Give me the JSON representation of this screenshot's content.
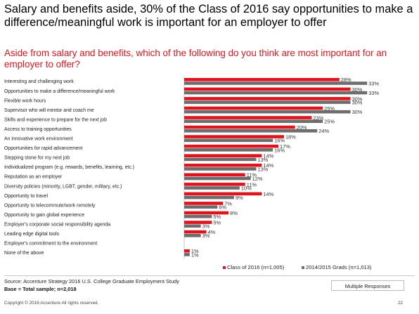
{
  "headline": "Salary and benefits aside, 30% of the Class of 2016 say opportunities to make a difference/meaningful work is important for an employer to offer",
  "question": "Aside from salary and benefits, which of the following do you think are most important for an employer to offer?",
  "colors": {
    "class2016": "#e0141e",
    "grads1415": "#6d6d6d",
    "question": "#e0141e"
  },
  "chart_data": {
    "type": "bar",
    "orientation": "horizontal",
    "unit": "%",
    "xlim": [
      0,
      35
    ],
    "grid": false,
    "legend_position": "bottom-right",
    "categories": [
      "Interesting and challenging work",
      "Opportunities to make a difference/meaningful work",
      "Flexible work hours",
      "Supervisor who will mentor and coach me",
      "Skills and experience to prepare for the next job",
      "Access to training opportunities",
      "An innovative work environment",
      "Opportunities for rapid advancement",
      "Stepping stone for my next job",
      "Individualized program (e.g. rewards, benefits, learning, etc.)",
      "Reputation as an employer",
      "Diversity policies (minority, LGBT, gender, military, etc.)",
      "Opportunity to travel",
      "Opportunity to telecommute/work remotely",
      "Opportunity to gain global experience",
      "Employer's corporate social responsibility agenda",
      "Leading edge digital tools",
      "Employer's commitment to the environment",
      "None of the above"
    ],
    "series": [
      {
        "name": "Class of 2016 (n=1,005)",
        "color": "#e0141e",
        "values": [
          28,
          30,
          30,
          25,
          23,
          20,
          18,
          17,
          14,
          14,
          11,
          11,
          14,
          7,
          8,
          5,
          4,
          null,
          1
        ]
      },
      {
        "name": "2014/2015 Grads (n=1,013)",
        "color": "#6d6d6d",
        "values": [
          33,
          33,
          30,
          30,
          25,
          24,
          16,
          16,
          13,
          13,
          12,
          10,
          9,
          6,
          5,
          3,
          3,
          null,
          1
        ]
      }
    ],
    "value_labels": [
      [
        "28%",
        "30%",
        "30%",
        "25%",
        "23%",
        "20%",
        "18%",
        "17%",
        "14%",
        "14%",
        "11%",
        "11%",
        "14%",
        "7%",
        "8%",
        "5%",
        "4%",
        "",
        "1%"
      ],
      [
        "33%",
        "33%",
        "30%",
        "30%",
        "25%",
        "24%",
        "16%",
        "16%",
        "13%",
        "13%",
        "12%",
        "10%",
        "9%",
        "6%",
        "5%",
        "3%",
        "3%",
        "",
        "1%"
      ]
    ]
  },
  "footer": {
    "source": "Source: Accenture Strategy 2016 U.S. College Graduate Employment Study",
    "base": "Base = Total sample; n=2,018",
    "multiple_responses": "Multiple Responses",
    "copyright": "Copyright © 2016 Accenture  All rights reserved.",
    "page_number": "22"
  }
}
